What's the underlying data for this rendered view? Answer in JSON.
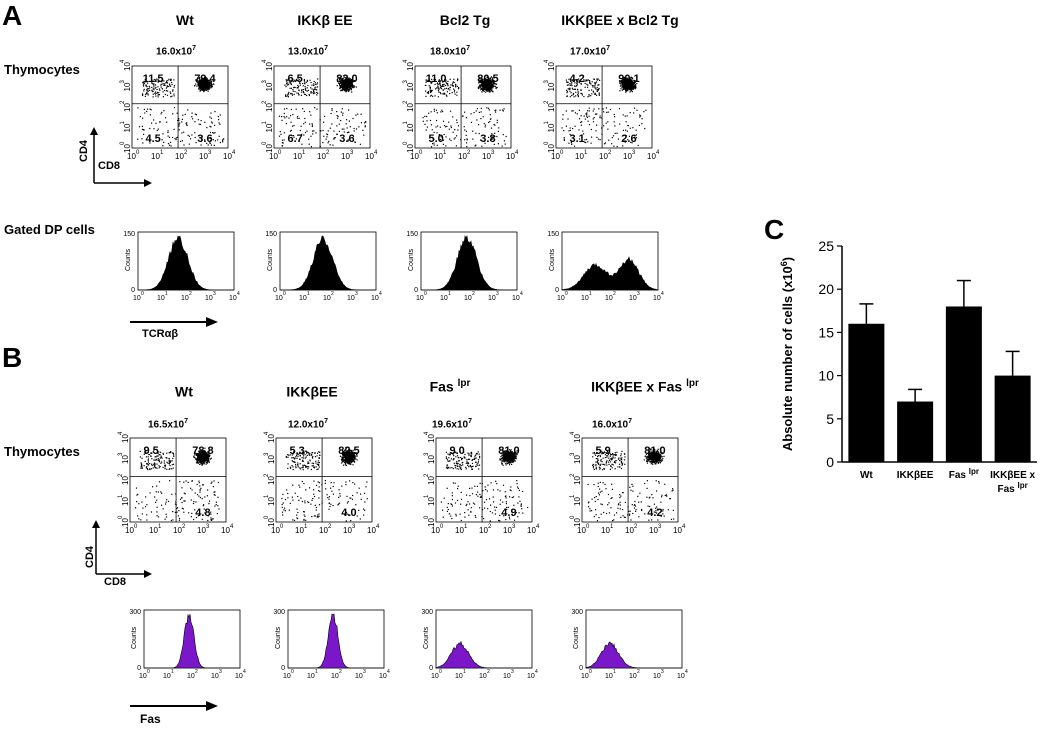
{
  "panelA": {
    "letter": "A",
    "columns": [
      "Wt",
      "IKKβ EE",
      "Bcl2 Tg",
      "IKKβEE x Bcl2 Tg"
    ],
    "row1_label": "Thymocytes",
    "row2_label": "Gated DP cells",
    "axis_y": "CD4",
    "axis_x": "CD8",
    "hist_axis": "TCRαβ",
    "hist_ylabel": "Counts",
    "hist_ymax": "150",
    "counts": [
      {
        "mant": "16.0x10",
        "exp": "7"
      },
      {
        "mant": "13.0x10",
        "exp": "7"
      },
      {
        "mant": "18.0x10",
        "exp": "7"
      },
      {
        "mant": "17.0x10",
        "exp": "7"
      }
    ],
    "quadrants": [
      {
        "ul": "11.5",
        "ur": "79.4",
        "ll": "4.5",
        "lr": "3.6"
      },
      {
        "ul": "6.5",
        "ur": "83.0",
        "ll": "6.7",
        "lr": "3.6"
      },
      {
        "ul": "11.0",
        "ur": "80.5",
        "ll": "5.0",
        "lr": "3.8"
      },
      {
        "ul": "4.2",
        "ur": "90.1",
        "ll": "3.1",
        "lr": "2.6"
      }
    ]
  },
  "panelB": {
    "letter": "B",
    "columns": [
      {
        "base": "Wt",
        "sup": ""
      },
      {
        "base": "IKKβEE",
        "sup": ""
      },
      {
        "base": "Fas ",
        "sup": "lpr"
      },
      {
        "base": "IKKβEE x  Fas ",
        "sup": "lpr"
      }
    ],
    "row1_label": "Thymocytes",
    "axis_y": "CD4",
    "axis_x": "CD8",
    "hist_axis": "Fas",
    "hist_ylabel": "Counts",
    "hist_ymax": "300",
    "counts": [
      {
        "mant": "16.5x10",
        "exp": "7"
      },
      {
        "mant": "12.0x10",
        "exp": "7"
      },
      {
        "mant": "19.6x10",
        "exp": "7"
      },
      {
        "mant": "16.0x10",
        "exp": "7"
      }
    ],
    "quadrants": [
      {
        "ul": "9.5",
        "ur": "78.8",
        "lr": "4.8"
      },
      {
        "ul": "5.3",
        "ur": "82.5",
        "lr": "4.0"
      },
      {
        "ul": "9.0",
        "ur": "81.0",
        "lr": "4.9"
      },
      {
        "ul": "5.9",
        "ur": "81.0",
        "lr": "4.2"
      }
    ]
  },
  "panelC": {
    "letter": "C",
    "chart_data": {
      "type": "bar",
      "categories": [
        "Wt",
        "IKKβEE",
        "Fas lpr",
        "IKKβEE x Fas lpr"
      ],
      "values": [
        16,
        7,
        18,
        10
      ],
      "errors": [
        2.3,
        1.4,
        3.0,
        2.8
      ],
      "ylabel": "Absolute number of cells (x10",
      "ylabel_sup": "6",
      "ylabel_end": ")",
      "ylim": [
        0,
        25
      ],
      "yticks": [
        "0",
        "5",
        "10",
        "15",
        "20",
        "25"
      ],
      "bar_color": "#000000"
    },
    "xlabels": [
      {
        "l1": "Wt",
        "l1sup": "",
        "l2": "",
        "l2sup": ""
      },
      {
        "l1": "IKKβEE",
        "l1sup": "",
        "l2": "",
        "l2sup": ""
      },
      {
        "l1": "Fas ",
        "l1sup": "lpr",
        "l2": "",
        "l2sup": ""
      },
      {
        "l1": "IKKβEE x",
        "l1sup": "",
        "l2": "Fas ",
        "l2sup": "lpr"
      }
    ]
  },
  "flow_ticks": [
    "10",
    "10",
    "10",
    "10",
    "10"
  ],
  "flow_tick_exps": [
    "0",
    "1",
    "2",
    "3",
    "4"
  ]
}
